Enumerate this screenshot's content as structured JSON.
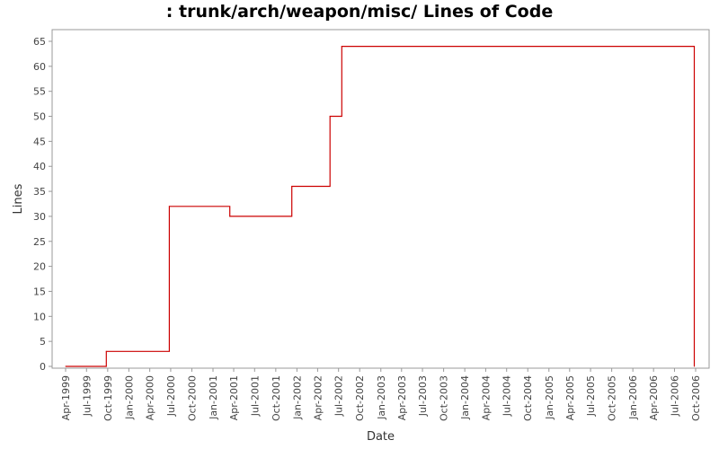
{
  "chart_data": {
    "type": "line",
    "step": true,
    "title": ": trunk/arch/weapon/misc/ Lines of Code",
    "xlabel": "Date",
    "ylabel": "Lines",
    "ylim": [
      0,
      67
    ],
    "xlim": [
      "1999-04-01",
      "2006-10-01"
    ],
    "yticks": [
      0,
      5,
      10,
      15,
      20,
      25,
      30,
      35,
      40,
      45,
      50,
      55,
      60,
      65
    ],
    "xticks": [
      "Apr-1999",
      "Jul-1999",
      "Oct-1999",
      "Jan-2000",
      "Apr-2000",
      "Jul-2000",
      "Oct-2000",
      "Jan-2001",
      "Apr-2001",
      "Jul-2001",
      "Oct-2001",
      "Jan-2002",
      "Apr-2002",
      "Jul-2002",
      "Oct-2002",
      "Jan-2003",
      "Apr-2003",
      "Jul-2003",
      "Oct-2003",
      "Jan-2004",
      "Apr-2004",
      "Jul-2004",
      "Oct-2004",
      "Jan-2005",
      "Apr-2005",
      "Jul-2005",
      "Oct-2005",
      "Jan-2006",
      "Apr-2006",
      "Jul-2006",
      "Oct-2006"
    ],
    "grid": false,
    "line_color": "#cc0000",
    "series": [
      {
        "points": [
          {
            "x": "1999-04-01",
            "y": 0
          },
          {
            "x": "1999-09-25",
            "y": 3
          },
          {
            "x": "2000-06-25",
            "y": 32
          },
          {
            "x": "2001-03-15",
            "y": 30
          },
          {
            "x": "2001-12-10",
            "y": 36
          },
          {
            "x": "2002-05-25",
            "y": 50
          },
          {
            "x": "2002-07-15",
            "y": 64
          },
          {
            "x": "2006-09-25",
            "y": 0
          }
        ]
      }
    ]
  }
}
